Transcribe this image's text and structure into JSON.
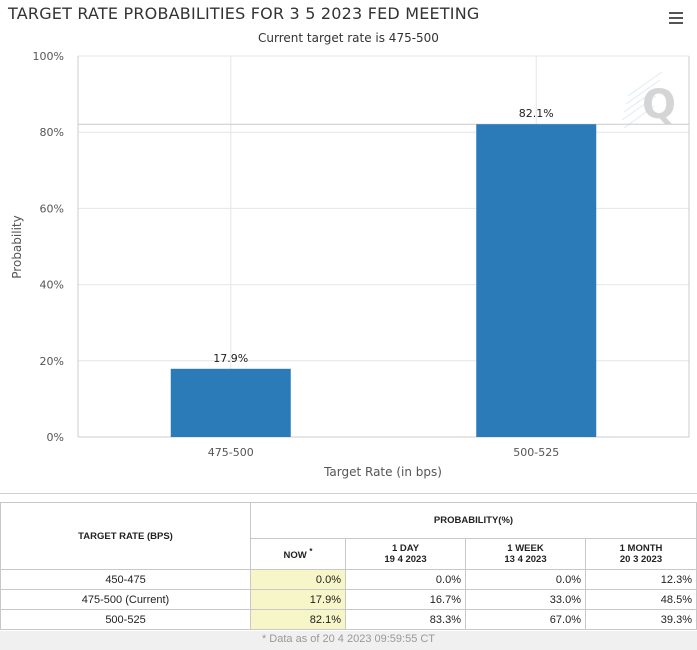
{
  "chart_data": {
    "type": "bar",
    "title": "TARGET RATE PROBABILITIES FOR 3 5 2023 FED MEETING",
    "subtitle": "Current target rate is 475-500",
    "xlabel": "Target Rate (in bps)",
    "ylabel": "Probability",
    "categories": [
      "475-500",
      "500-525"
    ],
    "values": [
      17.9,
      82.1
    ],
    "data_labels": [
      "17.9%",
      "82.1%"
    ],
    "ylim": [
      0,
      100
    ],
    "yticks": [
      "0%",
      "20%",
      "40%",
      "60%",
      "80%",
      "100%"
    ],
    "grid": true,
    "legend": "none",
    "bar_color": "#2b7bb9"
  },
  "table": {
    "header_target": "TARGET RATE (BPS)",
    "header_prob": "PROBABILITY(%)",
    "col_now": "NOW",
    "col_now_mark": "*",
    "col_1day": "1 DAY",
    "col_1day_date": "19 4 2023",
    "col_1week": "1 WEEK",
    "col_1week_date": "13 4 2023",
    "col_1month": "1 MONTH",
    "col_1month_date": "20 3 2023",
    "rows": [
      {
        "rate": "450-475",
        "now": "0.0%",
        "day": "0.0%",
        "week": "0.0%",
        "month": "12.3%"
      },
      {
        "rate": "475-500 (Current)",
        "now": "17.9%",
        "day": "16.7%",
        "week": "33.0%",
        "month": "48.5%"
      },
      {
        "rate": "500-525",
        "now": "82.1%",
        "day": "83.3%",
        "week": "67.0%",
        "month": "39.3%"
      }
    ],
    "note": "* Data as of 20 4 2023 09:59:55 CT"
  },
  "icons": {
    "menu": "hamburger-menu-icon",
    "watermark": "q-logo-watermark"
  }
}
